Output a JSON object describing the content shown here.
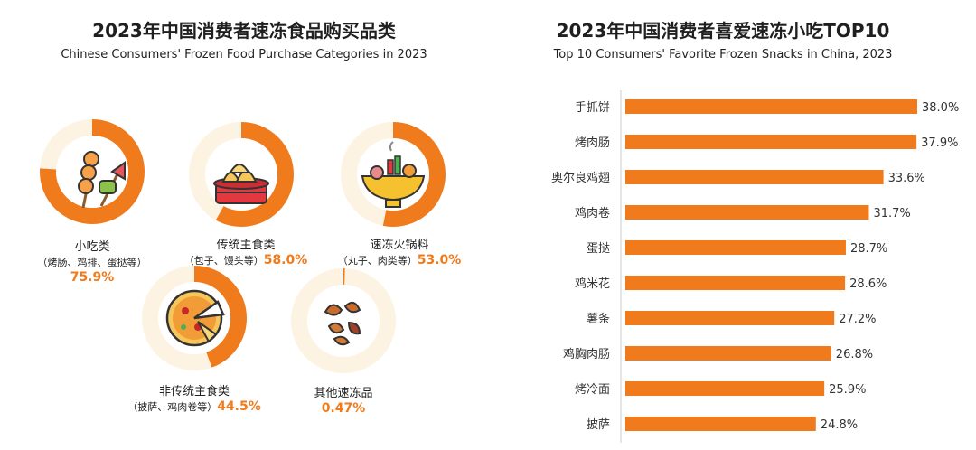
{
  "left_chart": {
    "title": "2023年中国消费者速冻食品购买品类",
    "subtitle": "Chinese Consumers' Frozen Food Purchase Categories in 2023",
    "items": [
      {
        "name": "小吃类",
        "detail": "（烤肠、鸡排、蛋挞等）",
        "value_label": "75.9%",
        "value": 75.9,
        "icon": "skewer-icon"
      },
      {
        "name": "传统主食类",
        "detail": "（包子、馒头等）",
        "value_label": "58.0%",
        "value": 58.0,
        "icon": "steamed-bun-icon"
      },
      {
        "name": "速冻火锅料",
        "detail": "（丸子、肉类等）",
        "value_label": "53.0%",
        "value": 53.0,
        "icon": "hotpot-icon"
      },
      {
        "name": "非传统主食类",
        "detail": "（披萨、鸡肉卷等）",
        "value_label": "44.5%",
        "value": 44.5,
        "icon": "pizza-icon"
      },
      {
        "name": "其他速冻品",
        "detail": "",
        "value_label": "0.47%",
        "value": 0.47,
        "icon": "snacks-icon"
      }
    ],
    "accent_color": "#f07b1d",
    "track_color": "#fdf3e3"
  },
  "chart_data": {
    "type": "bar",
    "orientation": "horizontal",
    "title": "2023年中国消费者喜爱速冻小吃TOP10",
    "subtitle": "Top 10 Consumers' Favorite Frozen Snacks in China, 2023",
    "categories": [
      "手抓饼",
      "烤肉肠",
      "奥尔良鸡翅",
      "鸡肉卷",
      "蛋挞",
      "鸡米花",
      "薯条",
      "鸡胸肉肠",
      "烤冷面",
      "披萨"
    ],
    "values": [
      38.0,
      37.9,
      33.6,
      31.7,
      28.7,
      28.6,
      27.2,
      26.8,
      25.9,
      24.8
    ],
    "value_labels": [
      "38.0%",
      "37.9%",
      "33.6%",
      "31.7%",
      "28.7%",
      "28.6%",
      "27.2%",
      "26.8%",
      "25.9%",
      "24.8%"
    ],
    "xlim": [
      0,
      40
    ],
    "bar_color": "#f07b1d"
  }
}
